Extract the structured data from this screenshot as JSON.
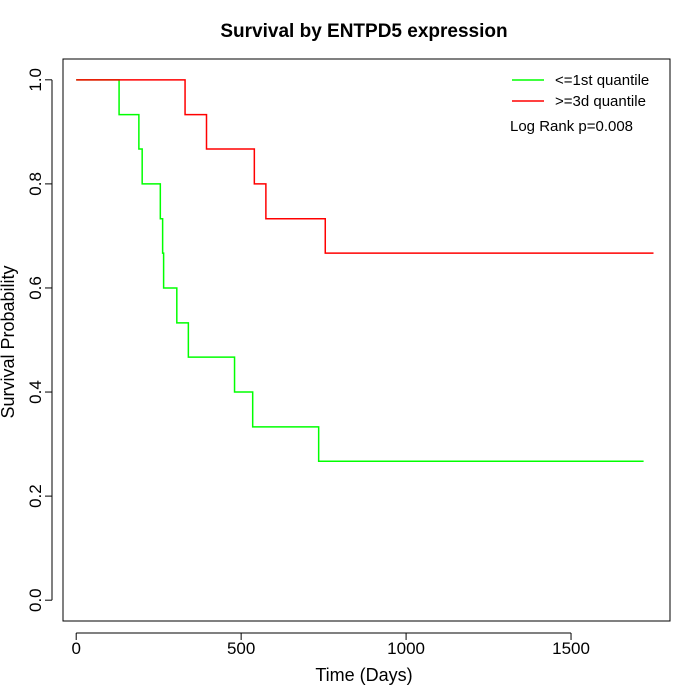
{
  "chart_data": {
    "type": "line",
    "title": "Survival by ENTPD5 expression",
    "xlabel": "Time (Days)",
    "ylabel": "Survival Probability",
    "xlim": [
      -40,
      1800
    ],
    "ylim": [
      -0.04,
      1.04
    ],
    "x_ticks": [
      0,
      500,
      1000,
      1500
    ],
    "x_tick_labels": [
      "0",
      "500",
      "1000",
      "1500"
    ],
    "y_ticks": [
      0.0,
      0.2,
      0.4,
      0.6,
      0.8,
      1.0
    ],
    "y_tick_labels": [
      "0.0",
      "0.2",
      "0.4",
      "0.6",
      "0.8",
      "1.0"
    ],
    "grid": false,
    "legend_position": "top-right",
    "annotation": "Log Rank p=0.008",
    "series": [
      {
        "name": "<=1st quantile",
        "color": "#00ff00",
        "step": true,
        "x": [
          0,
          130,
          190,
          200,
          255,
          262,
          265,
          305,
          340,
          480,
          535,
          735,
          1720
        ],
        "y": [
          1.0,
          0.933,
          0.867,
          0.8,
          0.733,
          0.667,
          0.6,
          0.533,
          0.467,
          0.4,
          0.333,
          0.267,
          0.267
        ]
      },
      {
        "name": ">=3d quantile",
        "color": "#ff0000",
        "step": true,
        "x": [
          0,
          330,
          395,
          540,
          575,
          755,
          1750
        ],
        "y": [
          1.0,
          0.933,
          0.867,
          0.8,
          0.733,
          0.667,
          0.667
        ]
      }
    ]
  }
}
